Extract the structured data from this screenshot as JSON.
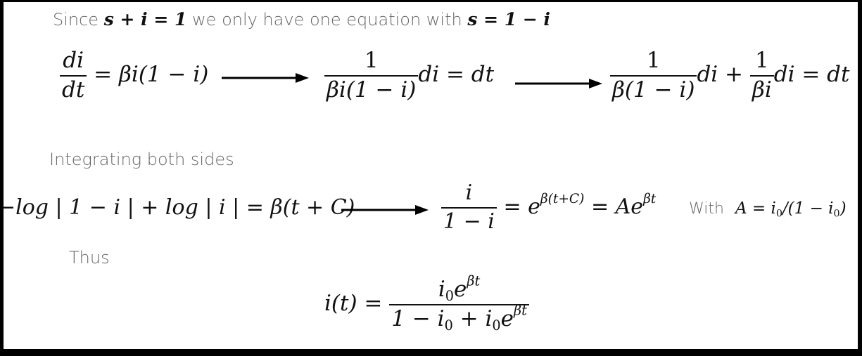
{
  "line1": {
    "text_a": "Since",
    "eq_a": "s + i = 1",
    "text_b": "we only have one equation with",
    "eq_b": "s = 1 − i"
  },
  "row1": {
    "f1_num": "di",
    "f1_den": "dt",
    "rhs1": "= βi(1 − i)",
    "f2_num": "1",
    "f2_den": "βi(1 − i)",
    "rhs2": "di = dt",
    "f3_num": "1",
    "f3_den": "β(1 − i)",
    "mid3": "di +",
    "f4_num": "1",
    "f4_den": "βi",
    "rhs3": "di = dt"
  },
  "line2": {
    "text": "Integrating both sides"
  },
  "row2": {
    "lhs": "−log | 1 − i | + log | i | = β(t + C)",
    "f_num": "i",
    "f_den": "1 − i",
    "eq_e": "= e",
    "exp1": "β(t+C)",
    "eq_a": "= Ae",
    "exp2": "βt",
    "with": "With",
    "a_def": "A = i",
    "a_sub1": "0",
    "a_mid": "/(1 − i",
    "a_sub2": "0",
    "a_end": ")"
  },
  "line3": {
    "text": "Thus"
  },
  "row3": {
    "lhs": "i(t) =",
    "num_i": "i",
    "num_sub": "0",
    "num_e": "e",
    "num_exp": "βt",
    "den_a": "1 − i",
    "den_sub1": "0",
    "den_b": " + i",
    "den_sub2": "0",
    "den_e": "e",
    "den_exp": "βt"
  }
}
